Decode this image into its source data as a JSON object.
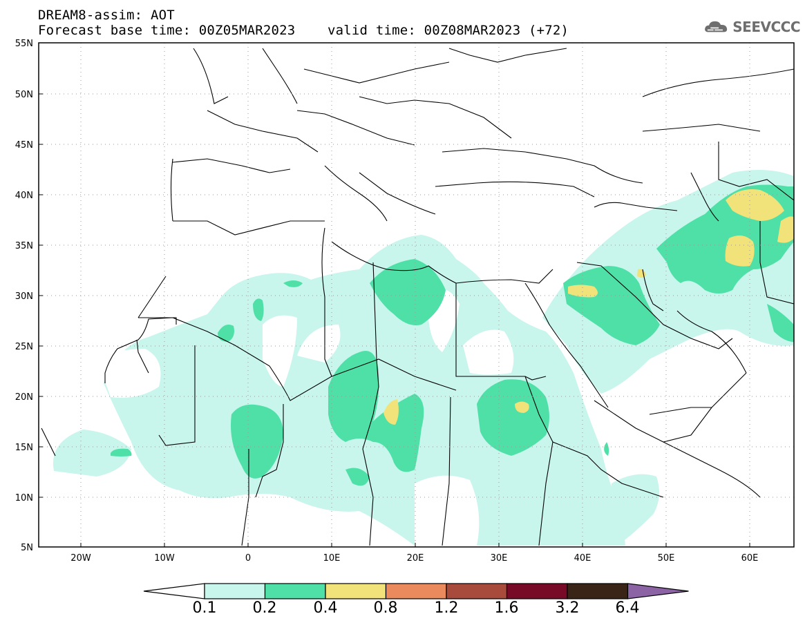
{
  "header": {
    "title_line1": "DREAM8-assim: AOT",
    "title_line2": "Forecast base time: 00Z05MAR2023    valid time: 00Z08MAR2023 (+72)"
  },
  "logo": {
    "text": "SEEVCCC",
    "icon": "cloud-icon"
  },
  "map": {
    "lat_labels": [
      "55N",
      "50N",
      "45N",
      "40N",
      "35N",
      "30N",
      "25N",
      "20N",
      "15N",
      "10N",
      "5N"
    ],
    "lon_labels": [
      "20W",
      "10W",
      "0",
      "10E",
      "20E",
      "30E",
      "40E",
      "50E",
      "60E"
    ],
    "lon_range": [
      -25,
      65
    ],
    "lat_range": [
      5,
      55
    ]
  },
  "colorbar": {
    "labels": [
      "0.1",
      "0.2",
      "0.4",
      "0.8",
      "1.2",
      "1.6",
      "3.2",
      "6.4"
    ],
    "colors": [
      "#c8f5ec",
      "#4fe0a8",
      "#f2e27a",
      "#eb8a5d",
      "#a84b3c",
      "#780a27",
      "#3a2417",
      "#8c64a6"
    ]
  },
  "colors": {
    "light": "#c8f5ec",
    "mid": "#4fe0a8",
    "high": "#f2e27a"
  }
}
